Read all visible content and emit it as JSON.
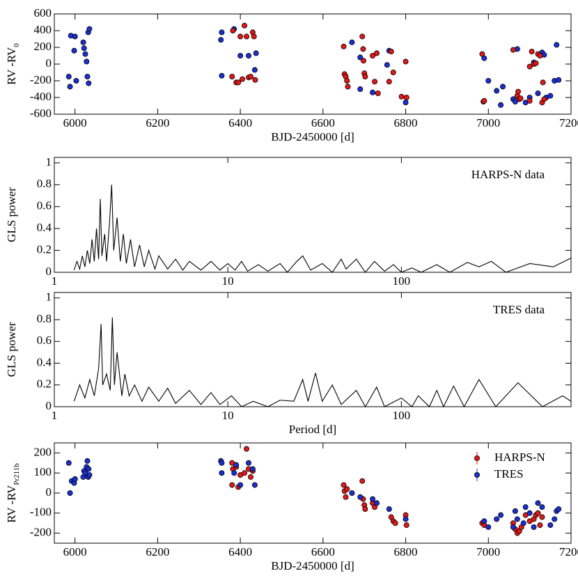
{
  "chart_data": [
    {
      "type": "scatter",
      "xlabel": "BJD-2450000 [d]",
      "ylabel": "RV -RV",
      "ylabel_sub": "0",
      "xlim": [
        5950,
        7200
      ],
      "ylim": [
        -600,
        600
      ],
      "xticks": [
        6000,
        6200,
        6400,
        6600,
        6800,
        7000,
        7200
      ],
      "yticks": [
        -600,
        -400,
        -200,
        0,
        200,
        400,
        600
      ],
      "series": [
        {
          "color": "#1a2fd0",
          "x": [
            5985,
            5988,
            5990,
            5998,
            6000,
            6003,
            6020,
            6022,
            6025,
            6028,
            6030,
            6032,
            6035,
            6033,
            6353,
            6355,
            6355,
            6385,
            6400,
            6420,
            6435,
            6438,
            6670,
            6690,
            6690,
            6720,
            6755,
            6760,
            6800,
            6990,
            7000,
            7020,
            7030,
            7035,
            7060,
            7065,
            7070,
            7090,
            7100,
            7110,
            7120,
            7130,
            7135,
            7140,
            7150,
            7160,
            7165,
            7170
          ],
          "values": [
            -150,
            -270,
            340,
            160,
            330,
            -200,
            260,
            190,
            120,
            30,
            -150,
            380,
            420,
            -230,
            290,
            380,
            -140,
            420,
            100,
            100,
            -70,
            130,
            260,
            80,
            -300,
            -340,
            -10,
            160,
            -460,
            70,
            -200,
            -320,
            -490,
            -270,
            -420,
            -450,
            180,
            -460,
            -400,
            20,
            -350,
            140,
            110,
            -400,
            -380,
            -200,
            230,
            -190
          ]
        },
        {
          "color": "#e01818",
          "x": [
            6380,
            6382,
            6390,
            6395,
            6400,
            6405,
            6410,
            6415,
            6420,
            6425,
            6430,
            6433,
            6436,
            6650,
            6652,
            6655,
            6658,
            6660,
            6695,
            6697,
            6698,
            6700,
            6702,
            6720,
            6725,
            6730,
            6733,
            6760,
            6765,
            6770,
            6790,
            6800,
            6802,
            6985,
            6988,
            6990,
            7060,
            7070,
            7072,
            7075,
            7078,
            7100,
            7100,
            7105,
            7110,
            7115,
            7120,
            7125,
            7130,
            7132,
            7135
          ],
          "values": [
            -150,
            400,
            -220,
            -220,
            330,
            -180,
            460,
            330,
            -160,
            -150,
            380,
            330,
            -190,
            210,
            -120,
            -150,
            -200,
            -270,
            330,
            180,
            40,
            -110,
            -150,
            100,
            -210,
            130,
            -350,
            -210,
            150,
            -100,
            -390,
            30,
            -400,
            120,
            -450,
            -440,
            170,
            -380,
            -330,
            -420,
            -410,
            -30,
            -440,
            150,
            0,
            10,
            120,
            100,
            -460,
            -220,
            -420
          ]
        }
      ]
    },
    {
      "type": "line",
      "annotation": "HARPS-N data",
      "ylabel": "GLS power",
      "xscale": "log",
      "xlim": [
        1,
        950
      ],
      "ylim": [
        0,
        1.05
      ],
      "xticks": [
        1,
        10,
        100
      ],
      "yticks": [
        0,
        0.2,
        0.4,
        0.6,
        0.8,
        1
      ],
      "series": [
        {
          "color": "#000000",
          "x": [
            1.3,
            1.35,
            1.4,
            1.45,
            1.5,
            1.55,
            1.6,
            1.65,
            1.7,
            1.75,
            1.8,
            1.84,
            1.88,
            1.95,
            2.0,
            2.08,
            2.14,
            2.2,
            2.3,
            2.4,
            2.5,
            2.6,
            2.75,
            2.9,
            3.1,
            3.3,
            3.5,
            3.8,
            4.0,
            4.5,
            5,
            5.5,
            6,
            7,
            8,
            9,
            10,
            11,
            12,
            13,
            15,
            17,
            20,
            22,
            25,
            27,
            30,
            35,
            40,
            45,
            48,
            55,
            62,
            70,
            80,
            90,
            100,
            115,
            130,
            160,
            190,
            240,
            280,
            330,
            400,
            550,
            750,
            950
          ],
          "values": [
            0.02,
            0.1,
            0.03,
            0.15,
            0.05,
            0.2,
            0.08,
            0.3,
            0.1,
            0.4,
            0.12,
            0.67,
            0.15,
            0.35,
            0.1,
            0.45,
            0.8,
            0.2,
            0.5,
            0.1,
            0.35,
            0.08,
            0.3,
            0.05,
            0.25,
            0.05,
            0.2,
            0.03,
            0.15,
            0.03,
            0.12,
            0.02,
            0.1,
            0.02,
            0.1,
            0.02,
            0.08,
            0.02,
            0.1,
            0.01,
            0.07,
            0.01,
            0.08,
            0,
            0.1,
            0.15,
            0.02,
            0.08,
            0,
            0.12,
            0.03,
            0.12,
            0,
            0.1,
            0.01,
            0.07,
            0,
            0.04,
            0,
            0.07,
            0,
            0.09,
            0.05,
            0.1,
            0,
            0.08,
            0.05,
            0.13
          ]
        }
      ]
    },
    {
      "type": "line",
      "annotation": "TRES data",
      "ylabel": "GLS power",
      "xlabel": "Period [d]",
      "xscale": "log",
      "xlim": [
        1,
        950
      ],
      "ylim": [
        0,
        1.05
      ],
      "xticks": [
        1,
        10,
        100
      ],
      "yticks": [
        0,
        0.2,
        0.4,
        0.6,
        0.8,
        1
      ],
      "series": [
        {
          "color": "#000000",
          "x": [
            1.3,
            1.4,
            1.5,
            1.6,
            1.7,
            1.8,
            1.86,
            1.9,
            2.0,
            2.1,
            2.16,
            2.22,
            2.3,
            2.45,
            2.55,
            2.7,
            2.9,
            3.2,
            3.5,
            4,
            4.5,
            5,
            6,
            7,
            8,
            9,
            10.5,
            12,
            14,
            17,
            20,
            24,
            27,
            29,
            32,
            35,
            40,
            45,
            55,
            62,
            72,
            80,
            100,
            115,
            125,
            145,
            160,
            175,
            200,
            230,
            280,
            350,
            470,
            650,
            850,
            950
          ],
          "values": [
            0.05,
            0.2,
            0.08,
            0.25,
            0.1,
            0.35,
            0.76,
            0.2,
            0.3,
            0.15,
            0.82,
            0.2,
            0.5,
            0.1,
            0.3,
            0.1,
            0.2,
            0.05,
            0.18,
            0.05,
            0.17,
            0.03,
            0.15,
            0.02,
            0.13,
            0.02,
            0.1,
            0,
            0.05,
            0,
            0.06,
            0.05,
            0.25,
            0.05,
            0.31,
            0.05,
            0.2,
            0.02,
            0.15,
            0,
            0.18,
            0,
            0.08,
            0,
            0.1,
            0,
            0.15,
            0,
            0.19,
            0,
            0.25,
            0,
            0.22,
            0,
            0.1,
            0.05
          ]
        }
      ]
    },
    {
      "type": "scatter",
      "xlabel": "BJD-2450000 [d]",
      "ylabel": "RV -RV",
      "ylabel_sub": "Pr211b",
      "legend": "upper right",
      "xlim": [
        5950,
        7200
      ],
      "ylim": [
        -250,
        250
      ],
      "xticks": [
        6000,
        6200,
        6400,
        6600,
        6800,
        7000,
        7200
      ],
      "yticks": [
        -200,
        -100,
        0,
        100,
        200
      ],
      "series": [
        {
          "name": "HARPS-N",
          "color": "#e01818",
          "x": [
            6380,
            6382,
            6390,
            6400,
            6410,
            6415,
            6420,
            6425,
            6430,
            6395,
            6380,
            6650,
            6652,
            6655,
            6658,
            6695,
            6697,
            6700,
            6702,
            6720,
            6725,
            6765,
            6770,
            6775,
            6800,
            6802,
            6985,
            6990,
            7060,
            7065,
            7070,
            7075,
            7080,
            7090,
            7100,
            7110,
            7115,
            7120,
            7125,
            7130
          ],
          "values": [
            150,
            120,
            130,
            90,
            100,
            220,
            120,
            80,
            110,
            30,
            40,
            40,
            10,
            -20,
            20,
            60,
            -30,
            -60,
            -80,
            -50,
            -70,
            -120,
            -140,
            -150,
            -110,
            -160,
            -150,
            -160,
            -150,
            -180,
            -200,
            -190,
            -170,
            -110,
            -140,
            -130,
            -110,
            -100,
            -160,
            -120
          ]
        },
        {
          "name": "TRES",
          "color": "#1a2fd0",
          "x": [
            5985,
            5988,
            5992,
            5998,
            6000,
            6020,
            6022,
            6025,
            6028,
            6030,
            6032,
            6035,
            6033,
            6353,
            6355,
            6355,
            6400,
            6390,
            6385,
            6420,
            6430,
            6435,
            6670,
            6690,
            6720,
            6730,
            6760,
            6800,
            6990,
            7000,
            7020,
            7030,
            7060,
            7065,
            7070,
            7090,
            7100,
            7120,
            7130,
            7150,
            7160,
            7165,
            7170,
            7085,
            7110
          ],
          "values": [
            150,
            0,
            60,
            50,
            70,
            80,
            110,
            100,
            130,
            160,
            80,
            90,
            120,
            160,
            100,
            150,
            40,
            140,
            100,
            150,
            120,
            40,
            0,
            -20,
            -30,
            -50,
            -80,
            -130,
            -140,
            -170,
            -130,
            -110,
            -170,
            -90,
            -130,
            -70,
            -100,
            -50,
            -70,
            -160,
            -130,
            -90,
            -80,
            -150,
            -170
          ]
        }
      ]
    }
  ]
}
